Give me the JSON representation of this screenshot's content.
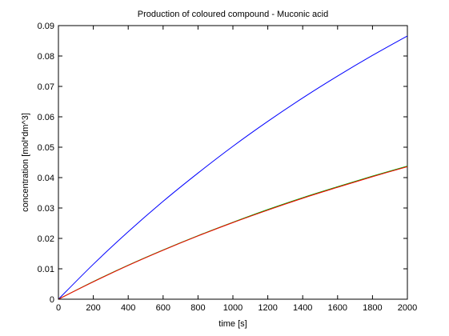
{
  "chart_data": {
    "type": "line",
    "title": "Production of coloured compound - Muconic acid",
    "xlabel": "time [s]",
    "ylabel": "concentration [mol*dm^3]",
    "xlim": [
      0,
      2000
    ],
    "ylim": [
      0,
      0.09
    ],
    "xticks": [
      0,
      200,
      400,
      600,
      800,
      1000,
      1200,
      1400,
      1600,
      1800,
      2000
    ],
    "yticks": [
      0,
      0.01,
      0.02,
      0.03,
      0.04,
      0.05,
      0.06,
      0.07,
      0.08,
      0.09
    ],
    "yticklabels": [
      "0",
      "0.01",
      "0.02",
      "0.03",
      "0.04",
      "0.05",
      "0.06",
      "0.07",
      "0.08",
      "0.09"
    ],
    "grid": false,
    "legend": false,
    "x": [
      0,
      200,
      400,
      600,
      800,
      1000,
      1200,
      1400,
      1600,
      1800,
      2000
    ],
    "series": [
      {
        "color": "#0000ff",
        "values": [
          0,
          0.0115,
          0.0222,
          0.0322,
          0.0415,
          0.0503,
          0.0585,
          0.0662,
          0.0734,
          0.0802,
          0.0866
        ]
      },
      {
        "color": "#00aa00",
        "values": [
          0,
          0.0058,
          0.0112,
          0.0162,
          0.0209,
          0.0253,
          0.0295,
          0.0334,
          0.037,
          0.0405,
          0.0438
        ]
      },
      {
        "color": "#ff0000",
        "values": [
          0,
          0.0057,
          0.0111,
          0.0161,
          0.0208,
          0.0252,
          0.0293,
          0.0332,
          0.0368,
          0.0403,
          0.0436
        ]
      }
    ]
  }
}
